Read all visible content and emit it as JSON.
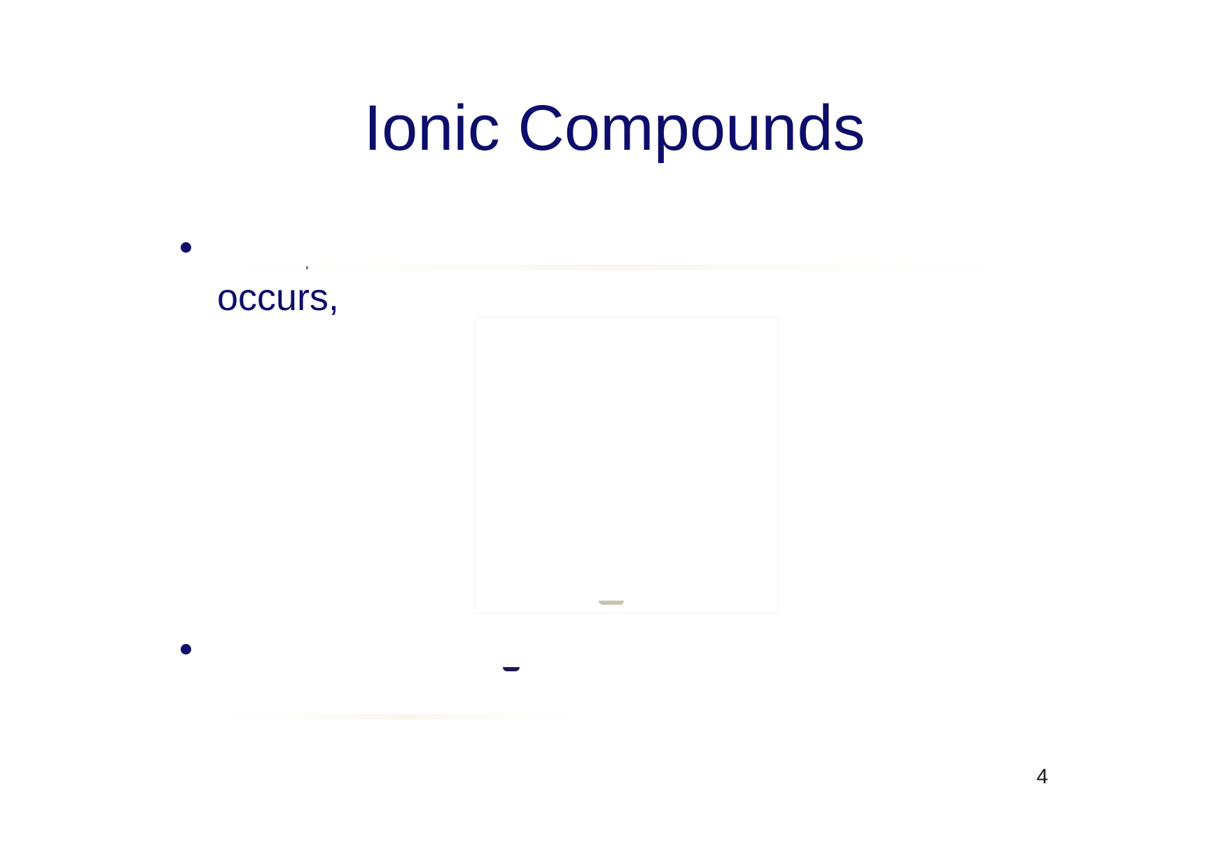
{
  "slide": {
    "title": "Ionic Compounds",
    "bullets": [
      {
        "text": "occurs,"
      },
      {
        "text": ""
      }
    ],
    "page_number": "4"
  }
}
